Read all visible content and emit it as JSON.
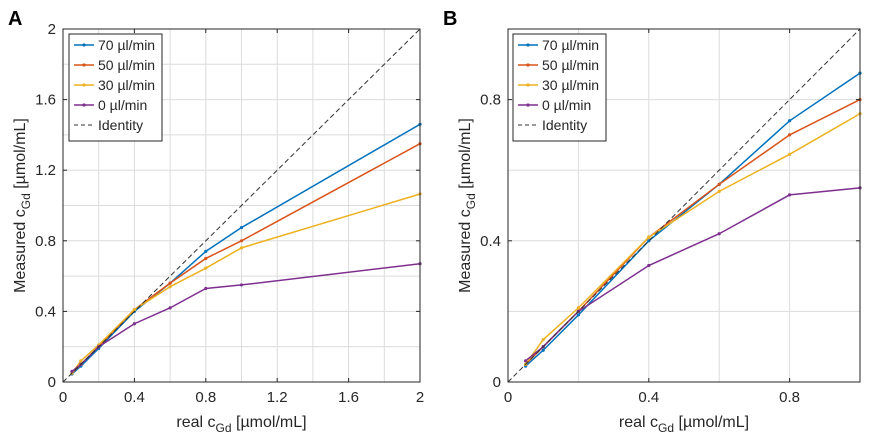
{
  "chart_data": [
    {
      "type": "line",
      "panel_label": "A",
      "xlabel_prefix": "real c",
      "xlabel_sub": "Gd",
      "xlabel_suffix": " [µmol/mL]",
      "ylabel_prefix": "Measured c",
      "ylabel_sub": "Gd",
      "ylabel_suffix": " [µmol/mL]",
      "xlim": [
        0,
        2
      ],
      "ylim": [
        0,
        2
      ],
      "xticks": [
        0,
        0.4,
        0.8,
        1.2,
        1.6,
        2
      ],
      "xtick_labels": [
        "0",
        "0.4",
        "0.8",
        "1.2",
        "1.6",
        "2"
      ],
      "yticks": [
        0,
        0.4,
        0.8,
        1.2,
        1.6,
        2
      ],
      "ytick_labels": [
        "0",
        "0.4",
        "0.8",
        "1.2",
        "1.6",
        "2"
      ],
      "grid_x": [
        0.2,
        0.4,
        0.6,
        0.8,
        1.0,
        1.2,
        1.4,
        1.6,
        1.8
      ],
      "grid_y": [
        0.2,
        0.4,
        0.6,
        0.8,
        1.0,
        1.2,
        1.4,
        1.6,
        1.8
      ],
      "legend_position": "top-left",
      "series": [
        {
          "name": "70 µl/min",
          "color": "#0072bd",
          "marker": true,
          "x": [
            0.05,
            0.1,
            0.2,
            0.4,
            0.6,
            0.8,
            1.0,
            2.0
          ],
          "y": [
            0.045,
            0.09,
            0.19,
            0.4,
            0.56,
            0.74,
            0.875,
            1.46
          ]
        },
        {
          "name": "50 µl/min",
          "color": "#d95319",
          "marker": true,
          "x": [
            0.05,
            0.1,
            0.2,
            0.4,
            0.6,
            0.8,
            1.0,
            2.0
          ],
          "y": [
            0.05,
            0.1,
            0.2,
            0.41,
            0.56,
            0.7,
            0.8,
            1.35
          ]
        },
        {
          "name": "30 µl/min",
          "color": "#edb120",
          "marker": true,
          "x": [
            0.05,
            0.1,
            0.2,
            0.4,
            0.6,
            0.8,
            1.0,
            2.0
          ],
          "y": [
            0.05,
            0.12,
            0.21,
            0.41,
            0.54,
            0.645,
            0.76,
            1.065
          ]
        },
        {
          "name": "0 µl/min",
          "color": "#7e2f8e",
          "marker": true,
          "x": [
            0.05,
            0.1,
            0.2,
            0.4,
            0.6,
            0.8,
            1.0,
            2.0
          ],
          "y": [
            0.06,
            0.1,
            0.2,
            0.33,
            0.42,
            0.53,
            0.55,
            0.67
          ]
        },
        {
          "name": "Identity",
          "color": "#333333",
          "dashed": true,
          "marker": false,
          "x": [
            0,
            2
          ],
          "y": [
            0,
            2
          ]
        }
      ]
    },
    {
      "type": "line",
      "panel_label": "B",
      "xlabel_prefix": "real c",
      "xlabel_sub": "Gd",
      "xlabel_suffix": " [µmol/mL]",
      "ylabel_prefix": "Measured c",
      "ylabel_sub": "Gd",
      "ylabel_suffix": " [µmol/mL]",
      "xlim": [
        0,
        1
      ],
      "ylim": [
        0,
        1
      ],
      "xticks": [
        0,
        0.4,
        0.8
      ],
      "xtick_labels": [
        "0",
        "0.4",
        "0.8"
      ],
      "yticks": [
        0,
        0.4,
        0.8
      ],
      "ytick_labels": [
        "0",
        "0.4",
        "0.8"
      ],
      "grid_x": [
        0.2,
        0.4,
        0.6,
        0.8
      ],
      "grid_y": [
        0.2,
        0.4,
        0.6,
        0.8
      ],
      "legend_position": "top-left",
      "series": [
        {
          "name": "70 µl/min",
          "color": "#0072bd",
          "marker": true,
          "x": [
            0.05,
            0.1,
            0.2,
            0.4,
            0.6,
            0.8,
            1.0
          ],
          "y": [
            0.045,
            0.09,
            0.19,
            0.4,
            0.56,
            0.74,
            0.875
          ]
        },
        {
          "name": "50 µl/min",
          "color": "#d95319",
          "marker": true,
          "x": [
            0.05,
            0.1,
            0.2,
            0.4,
            0.6,
            0.8,
            1.0
          ],
          "y": [
            0.05,
            0.1,
            0.2,
            0.41,
            0.56,
            0.7,
            0.8
          ]
        },
        {
          "name": "30 µl/min",
          "color": "#edb120",
          "marker": true,
          "x": [
            0.05,
            0.1,
            0.2,
            0.4,
            0.6,
            0.8,
            1.0
          ],
          "y": [
            0.05,
            0.12,
            0.21,
            0.41,
            0.54,
            0.645,
            0.76
          ]
        },
        {
          "name": "0 µl/min",
          "color": "#7e2f8e",
          "marker": true,
          "x": [
            0.05,
            0.1,
            0.2,
            0.4,
            0.6,
            0.8,
            1.0
          ],
          "y": [
            0.06,
            0.1,
            0.2,
            0.33,
            0.42,
            0.53,
            0.55
          ]
        },
        {
          "name": "Identity",
          "color": "#333333",
          "dashed": true,
          "marker": false,
          "x": [
            0,
            1
          ],
          "y": [
            0,
            1
          ]
        }
      ]
    }
  ]
}
